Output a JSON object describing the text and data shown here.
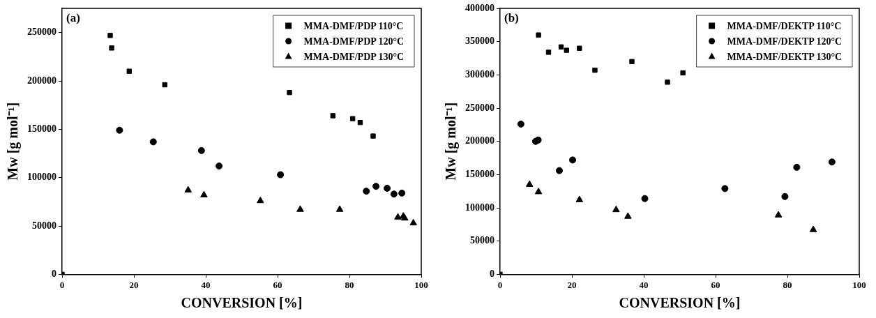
{
  "chart_data": [
    {
      "type": "scatter",
      "xlabel": "CONVERSION [%]",
      "ylabel": "Mw [g mol⁻¹]",
      "annotations": [
        "(a)"
      ],
      "xlim": [
        0,
        100
      ],
      "xticks": [
        0,
        20,
        40,
        60,
        80,
        100
      ],
      "ylim": [
        0,
        275000
      ],
      "yticks": [
        0,
        50000,
        100000,
        150000,
        200000,
        250000
      ],
      "grid": false,
      "legend": "top right",
      "series": [
        {
          "name": "MMA-DMF/PDP 110°C",
          "color": "#000000",
          "marker": "square",
          "x": [
            0,
            13.4,
            13.8,
            18.7,
            28.6,
            63.3,
            75.4,
            80.9,
            83.0,
            86.6
          ],
          "values": [
            0,
            247000,
            234000,
            210000,
            196000,
            188000,
            164000,
            161000,
            157000,
            143000
          ]
        },
        {
          "name": "MMA-DMF/PDP 120°C",
          "color": "#000000",
          "marker": "circle",
          "x": [
            16.0,
            25.4,
            38.8,
            43.7,
            60.8,
            84.7,
            87.4,
            90.5,
            92.4,
            94.6
          ],
          "values": [
            149000,
            137000,
            128000,
            112000,
            103000,
            86000,
            91000,
            89000,
            83000,
            84000
          ]
        },
        {
          "name": "MMA-DMF/PDP 130°C",
          "color": "#000000",
          "marker": "triangle",
          "x": [
            35.1,
            39.5,
            55.2,
            66.3,
            77.3,
            93.5,
            95.0,
            95.4,
            97.8
          ],
          "values": [
            87000,
            82000,
            76000,
            67000,
            67000,
            59000,
            60000,
            58000,
            53000
          ]
        }
      ]
    },
    {
      "type": "scatter",
      "xlabel": "CONVERSION [%]",
      "ylabel": "Mw [g mol⁻¹]",
      "annotations": [
        "(b)"
      ],
      "xlim": [
        0,
        100
      ],
      "xticks": [
        0,
        20,
        40,
        60,
        80,
        100
      ],
      "ylim": [
        0,
        400000
      ],
      "yticks": [
        0,
        50000,
        100000,
        150000,
        200000,
        250000,
        300000,
        350000,
        400000
      ],
      "grid": false,
      "legend": "top right",
      "series": [
        {
          "name": "MMA-DMF/DEKTP 110°C",
          "color": "#000000",
          "marker": "square",
          "x": [
            0,
            10.7,
            13.5,
            17.0,
            18.5,
            22.1,
            26.4,
            36.7,
            46.6,
            50.9
          ],
          "values": [
            0,
            360000,
            334000,
            342000,
            337000,
            340000,
            307000,
            320000,
            289000,
            303000
          ]
        },
        {
          "name": "MMA-DMF/DEKTP 120°C",
          "color": "#000000",
          "marker": "circle",
          "x": [
            5.8,
            9.9,
            10.6,
            16.5,
            20.2,
            40.3,
            62.6,
            79.3,
            82.6,
            92.4
          ],
          "values": [
            226000,
            200000,
            202000,
            156000,
            172000,
            114000,
            129000,
            117000,
            161000,
            169000
          ]
        },
        {
          "name": "MMA-DMF/DEKTP 130°C",
          "color": "#000000",
          "marker": "triangle",
          "x": [
            8.2,
            10.7,
            22.1,
            32.3,
            35.6,
            77.5,
            87.2
          ],
          "values": [
            135000,
            124000,
            112000,
            97000,
            87000,
            89000,
            67000
          ]
        }
      ]
    }
  ]
}
